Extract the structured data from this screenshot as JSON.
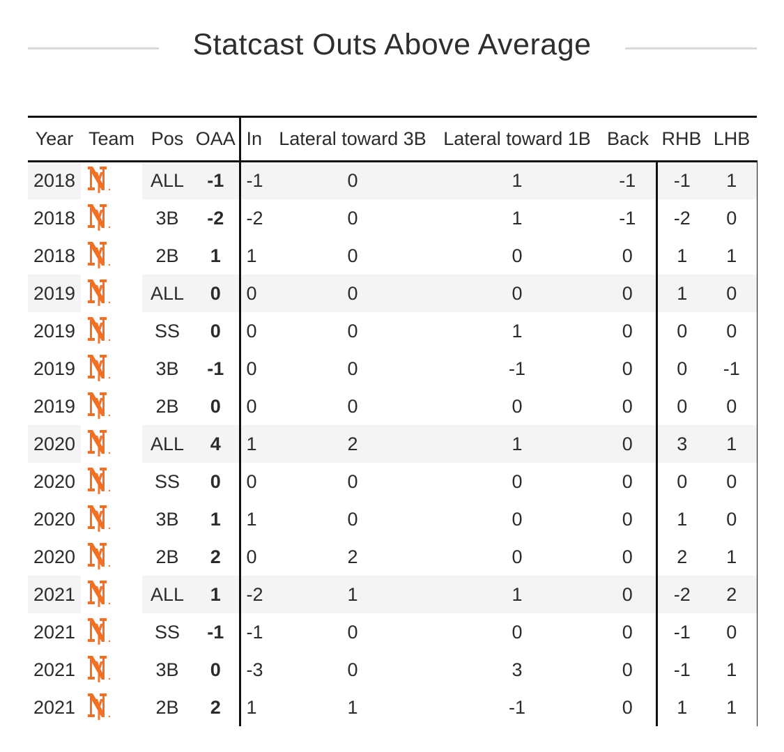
{
  "title": "Statcast Outs Above Average",
  "headers": {
    "year": "Year",
    "team": "Team",
    "pos": "Pos",
    "oaa": "OAA",
    "in": "In",
    "lat3b": "Lateral toward 3B",
    "lat1b": "Lateral toward 1B",
    "back": "Back",
    "rhb": "RHB",
    "lhb": "LHB"
  },
  "team_icon": "mets-ny-logo-icon",
  "colors": {
    "logo": "#f36f21",
    "shade": "#f4f4f4",
    "rule": "#111111"
  },
  "rows": [
    {
      "year": "2018",
      "pos": "ALL",
      "oaa": "-1",
      "in": "-1",
      "lat3b": "0",
      "lat1b": "1",
      "back": "-1",
      "rhb": "-1",
      "lhb": "1",
      "shade": true
    },
    {
      "year": "2018",
      "pos": "3B",
      "oaa": "-2",
      "in": "-2",
      "lat3b": "0",
      "lat1b": "1",
      "back": "-1",
      "rhb": "-2",
      "lhb": "0",
      "shade": false
    },
    {
      "year": "2018",
      "pos": "2B",
      "oaa": "1",
      "in": "1",
      "lat3b": "0",
      "lat1b": "0",
      "back": "0",
      "rhb": "1",
      "lhb": "1",
      "shade": false
    },
    {
      "year": "2019",
      "pos": "ALL",
      "oaa": "0",
      "in": "0",
      "lat3b": "0",
      "lat1b": "0",
      "back": "0",
      "rhb": "1",
      "lhb": "0",
      "shade": true
    },
    {
      "year": "2019",
      "pos": "SS",
      "oaa": "0",
      "in": "0",
      "lat3b": "0",
      "lat1b": "1",
      "back": "0",
      "rhb": "0",
      "lhb": "0",
      "shade": false
    },
    {
      "year": "2019",
      "pos": "3B",
      "oaa": "-1",
      "in": "0",
      "lat3b": "0",
      "lat1b": "-1",
      "back": "0",
      "rhb": "0",
      "lhb": "-1",
      "shade": false
    },
    {
      "year": "2019",
      "pos": "2B",
      "oaa": "0",
      "in": "0",
      "lat3b": "0",
      "lat1b": "0",
      "back": "0",
      "rhb": "0",
      "lhb": "0",
      "shade": false
    },
    {
      "year": "2020",
      "pos": "ALL",
      "oaa": "4",
      "in": "1",
      "lat3b": "2",
      "lat1b": "1",
      "back": "0",
      "rhb": "3",
      "lhb": "1",
      "shade": true
    },
    {
      "year": "2020",
      "pos": "SS",
      "oaa": "0",
      "in": "0",
      "lat3b": "0",
      "lat1b": "0",
      "back": "0",
      "rhb": "0",
      "lhb": "0",
      "shade": false
    },
    {
      "year": "2020",
      "pos": "3B",
      "oaa": "1",
      "in": "1",
      "lat3b": "0",
      "lat1b": "0",
      "back": "0",
      "rhb": "1",
      "lhb": "0",
      "shade": false
    },
    {
      "year": "2020",
      "pos": "2B",
      "oaa": "2",
      "in": "0",
      "lat3b": "2",
      "lat1b": "0",
      "back": "0",
      "rhb": "2",
      "lhb": "1",
      "shade": false
    },
    {
      "year": "2021",
      "pos": "ALL",
      "oaa": "1",
      "in": "-2",
      "lat3b": "1",
      "lat1b": "1",
      "back": "0",
      "rhb": "-2",
      "lhb": "2",
      "shade": true
    },
    {
      "year": "2021",
      "pos": "SS",
      "oaa": "-1",
      "in": "-1",
      "lat3b": "0",
      "lat1b": "0",
      "back": "0",
      "rhb": "-1",
      "lhb": "0",
      "shade": false
    },
    {
      "year": "2021",
      "pos": "3B",
      "oaa": "0",
      "in": "-3",
      "lat3b": "0",
      "lat1b": "3",
      "back": "0",
      "rhb": "-1",
      "lhb": "1",
      "shade": false
    },
    {
      "year": "2021",
      "pos": "2B",
      "oaa": "2",
      "in": "1",
      "lat3b": "1",
      "lat1b": "-1",
      "back": "0",
      "rhb": "1",
      "lhb": "1",
      "shade": false
    }
  ]
}
